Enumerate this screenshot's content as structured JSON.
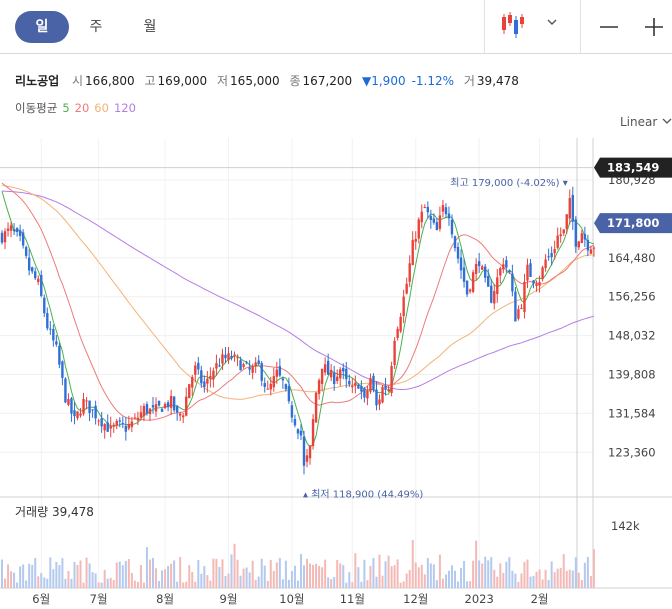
{
  "tabs": [
    {
      "label": "일",
      "active": true
    },
    {
      "label": "주",
      "active": false
    },
    {
      "label": "월",
      "active": false
    }
  ],
  "toolbar": {
    "chart_type_icon": "candlestick-icon",
    "dropdown_icon": "chevron-down-icon",
    "zoom_out_icon": "minus-icon",
    "zoom_in_icon": "plus-icon"
  },
  "info": {
    "name": "리노공업",
    "open_label": "시",
    "open": "166,800",
    "high_label": "고",
    "high": "169,000",
    "low_label": "저",
    "low": "165,000",
    "close_label": "종",
    "close": "167,200",
    "change": "▼1,900",
    "change_pct": "-1.12%",
    "volume_label": "거",
    "volume": "39,478"
  },
  "ma": {
    "label": "이동평균",
    "p5": "5",
    "p20": "20",
    "p60": "60",
    "p120": "120"
  },
  "scale_mode": "Linear",
  "colors": {
    "up": "#e8433b",
    "down": "#2f6fd6",
    "ma5": "#4cb050",
    "ma20": "#ee7b7b",
    "ma60": "#f3b275",
    "ma120": "#b57de8",
    "accent": "#4a63a6",
    "badge_dark": "#222222"
  },
  "volume_panel": {
    "label": "거래량",
    "value": "39,478",
    "axis_label": "142k"
  },
  "chart_data": {
    "type": "candlestick",
    "y_ticks": [
      "180,928",
      "172,704",
      "164,480",
      "156,256",
      "148,032",
      "139,808",
      "131,584",
      "123,360"
    ],
    "y_tick_values": [
      180928,
      172704,
      164480,
      156256,
      148032,
      139808,
      131584,
      123360
    ],
    "x_ticks": [
      "6월",
      "7월",
      "8월",
      "9월",
      "10월",
      "11월",
      "12월",
      "2023",
      "2월"
    ],
    "x_tick_days": [
      13,
      32,
      54,
      75,
      96,
      116,
      137,
      158,
      178
    ],
    "badges": [
      {
        "label": "183,549",
        "value": 183549,
        "style": "dark"
      },
      {
        "label": "171,800",
        "value": 171800,
        "style": "accent"
      }
    ],
    "annotations": [
      {
        "label_prefix": "최고",
        "text": "179,000 (-4.02%)",
        "value": 179000,
        "day": 188
      },
      {
        "label_prefix": "최저",
        "text": "118,900 (44.49%)",
        "value": 118900,
        "day": 100
      }
    ],
    "waypoints": [
      [
        0,
        169000
      ],
      [
        3,
        170500
      ],
      [
        6,
        168000
      ],
      [
        9,
        162000
      ],
      [
        12,
        159000
      ],
      [
        15,
        150000
      ],
      [
        18,
        145000
      ],
      [
        21,
        135000
      ],
      [
        24,
        130000
      ],
      [
        27,
        134000
      ],
      [
        30,
        132000
      ],
      [
        33,
        130000
      ],
      [
        36,
        128000
      ],
      [
        38,
        129000
      ],
      [
        41,
        128500
      ],
      [
        44,
        130000
      ],
      [
        47,
        132500
      ],
      [
        50,
        132000
      ],
      [
        53,
        133000
      ],
      [
        56,
        134000
      ],
      [
        58,
        131000
      ],
      [
        60,
        132000
      ],
      [
        62,
        138000
      ],
      [
        64,
        141000
      ],
      [
        67,
        137000
      ],
      [
        70,
        141000
      ],
      [
        73,
        143000
      ],
      [
        76,
        143500
      ],
      [
        79,
        142000
      ],
      [
        82,
        140500
      ],
      [
        85,
        141500
      ],
      [
        88,
        136000
      ],
      [
        91,
        140000
      ],
      [
        93,
        138000
      ],
      [
        95,
        133000
      ],
      [
        97,
        130000
      ],
      [
        99,
        127000
      ],
      [
        100,
        120000
      ],
      [
        102,
        124000
      ],
      [
        104,
        136000
      ],
      [
        106,
        142000
      ],
      [
        108,
        140000
      ],
      [
        110,
        139000
      ],
      [
        112,
        141000
      ],
      [
        114,
        138000
      ],
      [
        116,
        136500
      ],
      [
        118,
        138000
      ],
      [
        120,
        134000
      ],
      [
        122,
        139000
      ],
      [
        124,
        133000
      ],
      [
        126,
        137000
      ],
      [
        128,
        137000
      ],
      [
        130,
        148000
      ],
      [
        132,
        153000
      ],
      [
        134,
        159000
      ],
      [
        136,
        167000
      ],
      [
        138,
        172000
      ],
      [
        140,
        175000
      ],
      [
        142,
        172000
      ],
      [
        144,
        170000
      ],
      [
        146,
        175000
      ],
      [
        148,
        174000
      ],
      [
        150,
        167000
      ],
      [
        152,
        162000
      ],
      [
        154,
        157000
      ],
      [
        156,
        161000
      ],
      [
        158,
        164000
      ],
      [
        160,
        159000
      ],
      [
        162,
        156000
      ],
      [
        164,
        160000
      ],
      [
        166,
        164000
      ],
      [
        168,
        161000
      ],
      [
        170,
        152000
      ],
      [
        172,
        155000
      ],
      [
        174,
        162000
      ],
      [
        176,
        160000
      ],
      [
        178,
        160000
      ],
      [
        180,
        164000
      ],
      [
        182,
        165000
      ],
      [
        184,
        169000
      ],
      [
        186,
        170000
      ],
      [
        188,
        176000
      ],
      [
        190,
        168000
      ],
      [
        192,
        170000
      ],
      [
        194,
        167200
      ]
    ],
    "volume_ylim": [
      0,
      142000
    ]
  }
}
